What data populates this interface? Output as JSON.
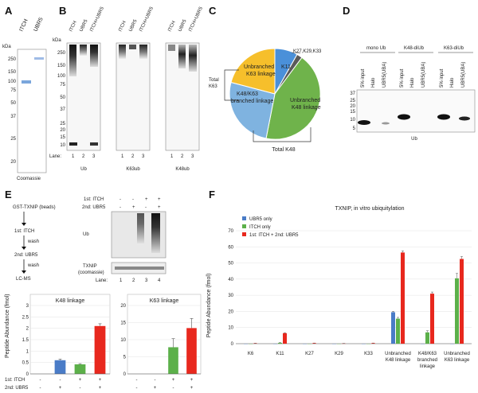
{
  "colors": {
    "ubr5": "#4a7cc7",
    "itch": "#5cb04a",
    "combo": "#e8281e",
    "pie_k11": "#4a90d9",
    "pie_k27": "#5a5a5a",
    "pie_unbr63": "#f6bf2b",
    "pie_unbr48": "#6fb34b",
    "pie_branched": "#7fb3e0"
  },
  "panelA": {
    "label": "A",
    "lanes": [
      "ITCH",
      "UBR5"
    ],
    "kda": "kDa",
    "markers": [
      "250",
      "150",
      "100",
      "75",
      "50",
      "37",
      "25",
      "20"
    ],
    "caption": "Coomassie"
  },
  "panelB": {
    "label": "B",
    "lanes": [
      "ITCH",
      "UBR5",
      "ITCH+UBR5"
    ],
    "kda": "kDa",
    "markers": [
      "250",
      "150",
      "100",
      "75",
      "50",
      "37",
      "25",
      "20",
      "15",
      "10"
    ],
    "lane_prefix": "Lane:",
    "lane_numbers": [
      "1",
      "2",
      "3"
    ],
    "blots": [
      "Ub",
      "K63ub",
      "K48ub"
    ]
  },
  "panelC": {
    "label": "C",
    "slices": [
      "K11",
      "K27,K29,K33",
      "Unbranched K48 linkage",
      "K48/K63 branched linkage",
      "Unbranched K63 linkage"
    ],
    "total_k63": "Total K63",
    "total_k48": "Total K48"
  },
  "panelD": {
    "label": "D",
    "groups": [
      "mono Ub",
      "K48-diUb",
      "K63-diUb"
    ],
    "lanes": [
      "5% input",
      "Halo",
      "UBR5(UBA)"
    ],
    "markers": [
      "37",
      "25",
      "20",
      "15",
      "10",
      "5"
    ],
    "caption": "Ub"
  },
  "panelE": {
    "label": "E",
    "workflow": [
      "GST-TXNIP (beads)",
      "1st: ITCH",
      "wash",
      "2nd: UBR5",
      "wash",
      "LC-MS"
    ],
    "row1_label": "1st: ITCH",
    "row2_label": "2nd: UBR5",
    "row1_signs": [
      "-",
      "-",
      "+",
      "+"
    ],
    "row2_signs": [
      "-",
      "+",
      "-",
      "+"
    ],
    "blot_ub": "Ub",
    "blot_txnip": "TXNIP",
    "blot_txnip_sub": "(coomassie)",
    "lane_prefix": "Lane:",
    "lane_numbers": [
      "1",
      "2",
      "3",
      "4"
    ],
    "ylabel": "Peptide Abundance (fmol)",
    "row1_short": "1st: ITCH",
    "row2_short": "2nd: UBR5"
  },
  "panelF": {
    "label": "F",
    "title": "TXNIP, in vitro ubiquitylation"
  },
  "chart_data": [
    {
      "type": "bar",
      "title": "K48 linkage",
      "ylabel": "Peptide Abundance (fmol)",
      "ylim": [
        0,
        3
      ],
      "yticks": [
        "0",
        "0.5",
        "1",
        "1.5",
        "2",
        "2.5",
        "3"
      ],
      "x_row1": [
        "-",
        "-",
        "+",
        "+"
      ],
      "x_row2": [
        "-",
        "+",
        "-",
        "+"
      ],
      "values": [
        0.0,
        0.6,
        0.42,
        2.1
      ],
      "errors": [
        0.0,
        0.05,
        0.03,
        0.1
      ],
      "bar_colors": [
        "#4a7cc7",
        "#4a7cc7",
        "#5cb04a",
        "#e8281e"
      ]
    },
    {
      "type": "bar",
      "title": "K63 linkage",
      "ylabel": "Peptide Abundance (fmol)",
      "ylim": [
        0,
        20
      ],
      "yticks": [
        "0",
        "5",
        "10",
        "15",
        "20"
      ],
      "x_row1": [
        "-",
        "-",
        "+",
        "+"
      ],
      "x_row2": [
        "-",
        "+",
        "-",
        "+"
      ],
      "values": [
        0.0,
        0.0,
        7.8,
        13.4
      ],
      "errors": [
        0.0,
        0.0,
        2.5,
        2.8
      ],
      "bar_colors": [
        "#4a7cc7",
        "#4a7cc7",
        "#5cb04a",
        "#e8281e"
      ]
    },
    {
      "type": "bar",
      "title": "TXNIP, in vitro ubiquitylation",
      "ylabel": "Peptide Abundance (fmol)",
      "ylim": [
        0,
        70
      ],
      "yticks": [
        "0",
        "10",
        "20",
        "30",
        "40",
        "50",
        "60",
        "70"
      ],
      "categories": [
        "K6",
        "K11",
        "K27",
        "K29",
        "K33",
        "Unbranched K48 linkage",
        "K48/K63 branched linkage",
        "Unbranched K63 linkage"
      ],
      "series": [
        {
          "name": "UBR5 only",
          "color": "#4a7cc7",
          "values": [
            0,
            0,
            0,
            0,
            0,
            19.5,
            0,
            0
          ],
          "errors": [
            0,
            0,
            0,
            0,
            0,
            0.5,
            0,
            0
          ]
        },
        {
          "name": "ITCH only",
          "color": "#5cb04a",
          "values": [
            0,
            0.5,
            0,
            0,
            0,
            15.5,
            7,
            40.5
          ],
          "errors": [
            0,
            0.2,
            0,
            0,
            0,
            0.8,
            1,
            3
          ]
        },
        {
          "name": "1st: ITCH + 2nd: UBR5",
          "color": "#e8281e",
          "values": [
            0.2,
            6.5,
            0.3,
            0.1,
            0.3,
            56.5,
            31,
            52.5
          ],
          "errors": [
            0.1,
            0.3,
            0.1,
            0.1,
            0.1,
            1,
            1,
            1.5
          ]
        }
      ],
      "legend": "top-left"
    }
  ]
}
